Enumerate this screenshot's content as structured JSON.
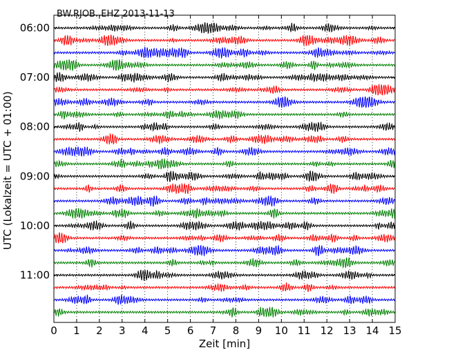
{
  "chart_data": {
    "type": "line",
    "chart_kind": "seismogram dayplot",
    "title": "BW.RJOB..EHZ 2013-11-13",
    "xlabel": "Zeit  [min]",
    "ylabel": "UTC (Lokalzeit = UTC + 01:00)",
    "xlim": [
      0,
      15
    ],
    "x_ticks": [
      "0",
      "1",
      "2",
      "3",
      "4",
      "5",
      "6",
      "7",
      "8",
      "9",
      "10",
      "11",
      "12",
      "13",
      "14",
      "15"
    ],
    "x_grid": "dotted vertical lines at each minute",
    "y_tick_labels": [
      "06:00",
      "07:00",
      "08:00",
      "09:00",
      "10:00",
      "11:00"
    ],
    "traces_per_hour": 4,
    "trace_minutes": 15,
    "trace_count": 24,
    "trace_colors": [
      "#000000",
      "#ff0000",
      "#0000ff",
      "#008000"
    ]
  }
}
